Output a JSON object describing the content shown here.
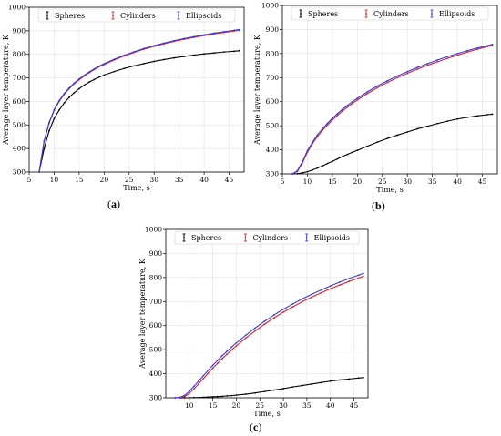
{
  "figure": {
    "panel_labels": [
      "a",
      "b",
      "c"
    ]
  },
  "chart_data": [
    {
      "id": "a",
      "type": "line",
      "xlabel": "Time, s",
      "ylabel": "Average layer temperature, K",
      "xlim": [
        5,
        48
      ],
      "ylim": [
        300,
        1000
      ],
      "xticks": [
        5,
        10,
        15,
        20,
        25,
        30,
        35,
        40,
        45
      ],
      "yticks": [
        300,
        400,
        500,
        600,
        700,
        800,
        900,
        1000
      ],
      "grid": true,
      "legend": "top",
      "x": [
        7.0,
        8.0,
        9.0,
        10.0,
        11.0,
        12.0,
        13.0,
        14.0,
        15.0,
        16.0,
        17.0,
        18.0,
        19.0,
        20.0,
        22.0,
        24.0,
        26.0,
        28.0,
        30.0,
        32.0,
        34.0,
        36.0,
        38.0,
        40.0,
        42.0,
        44.0,
        46.0,
        47.0
      ],
      "series": [
        {
          "name": "Spheres",
          "color": "#000000",
          "values": [
            300,
            400,
            475,
            527,
            563,
            593,
            617,
            637,
            654,
            669,
            682,
            693,
            703,
            712,
            727,
            740,
            751,
            761,
            770,
            778,
            785,
            791,
            797,
            802,
            806,
            810,
            813,
            815
          ]
        },
        {
          "name": "Cylinders",
          "color": "#d62728",
          "values": [
            300,
            430,
            508,
            562,
            600,
            630,
            654,
            675,
            692,
            708,
            722,
            735,
            747,
            757,
            776,
            793,
            808,
            822,
            834,
            845,
            855,
            864,
            872,
            880,
            887,
            893,
            899,
            902
          ]
        },
        {
          "name": "Ellipsoids",
          "color": "#3a3ad8",
          "values": [
            300,
            433,
            511,
            565,
            603,
            633,
            657,
            678,
            695,
            711,
            725,
            738,
            750,
            760,
            779,
            796,
            811,
            825,
            837,
            848,
            858,
            867,
            875,
            883,
            890,
            896,
            902,
            905
          ]
        }
      ]
    },
    {
      "id": "b",
      "type": "line",
      "xlabel": "Time, s",
      "ylabel": "Average layer temperature, K",
      "xlim": [
        5,
        48
      ],
      "ylim": [
        300,
        1000
      ],
      "xticks": [
        5,
        10,
        15,
        20,
        25,
        30,
        35,
        40,
        45
      ],
      "yticks": [
        300,
        400,
        500,
        600,
        700,
        800,
        900,
        1000
      ],
      "grid": true,
      "legend": "top",
      "x": [
        7.0,
        8.0,
        9.0,
        10.0,
        11.0,
        12.0,
        13.0,
        14.0,
        15.0,
        16.0,
        17.0,
        18.0,
        19.0,
        20.0,
        22.0,
        24.0,
        26.0,
        28.0,
        30.0,
        32.0,
        34.0,
        36.0,
        38.0,
        40.0,
        42.0,
        44.0,
        46.0,
        47.0
      ],
      "series": [
        {
          "name": "Spheres",
          "color": "#000000",
          "values": [
            300,
            301,
            304,
            309,
            316,
            324,
            333,
            343,
            352,
            362,
            372,
            381,
            390,
            398,
            415,
            432,
            447,
            461,
            474,
            487,
            498,
            509,
            519,
            528,
            535,
            541,
            546,
            548
          ]
        },
        {
          "name": "Cylinders",
          "color": "#d62728",
          "values": [
            300,
            310,
            345,
            390,
            425,
            455,
            480,
            503,
            524,
            543,
            561,
            577,
            593,
            607,
            634,
            658,
            680,
            700,
            718,
            735,
            751,
            766,
            780,
            793,
            806,
            818,
            829,
            834
          ]
        },
        {
          "name": "Ellipsoids",
          "color": "#3a3ad8",
          "values": [
            300,
            313,
            350,
            396,
            431,
            462,
            487,
            510,
            531,
            550,
            568,
            584,
            600,
            614,
            641,
            665,
            687,
            707,
            725,
            742,
            758,
            773,
            787,
            800,
            812,
            823,
            833,
            838
          ]
        }
      ]
    },
    {
      "id": "c",
      "type": "line",
      "xlabel": "Time, s",
      "ylabel": "Average layer temperature, K",
      "xlim": [
        5,
        48
      ],
      "ylim": [
        300,
        1000
      ],
      "xticks": [
        10,
        15,
        20,
        25,
        30,
        35,
        40,
        45
      ],
      "yticks": [
        300,
        400,
        500,
        600,
        700,
        800,
        900,
        1000
      ],
      "grid": true,
      "legend": "top",
      "x": [
        7.0,
        8.0,
        9.0,
        10.0,
        11.0,
        12.0,
        13.0,
        14.0,
        15.0,
        16.0,
        17.0,
        18.0,
        19.0,
        20.0,
        22.0,
        24.0,
        26.0,
        28.0,
        30.0,
        32.0,
        34.0,
        36.0,
        38.0,
        40.0,
        42.0,
        44.0,
        46.0,
        47.0
      ],
      "series": [
        {
          "name": "Spheres",
          "color": "#000000",
          "values": [
            300,
            300,
            300,
            300,
            301,
            301,
            302,
            303,
            304,
            305,
            306,
            308,
            309,
            311,
            315,
            320,
            326,
            332,
            338,
            345,
            351,
            357,
            363,
            369,
            374,
            378,
            382,
            384
          ]
        },
        {
          "name": "Cylinders",
          "color": "#d62728",
          "values": [
            300,
            301,
            305,
            318,
            337,
            358,
            380,
            402,
            423,
            443,
            463,
            481,
            499,
            516,
            548,
            578,
            606,
            632,
            656,
            678,
            699,
            718,
            736,
            753,
            769,
            784,
            798,
            805
          ]
        },
        {
          "name": "Ellipsoids",
          "color": "#3a3ad8",
          "values": [
            300,
            302,
            310,
            327,
            348,
            370,
            392,
            414,
            435,
            455,
            475,
            493,
            511,
            528,
            560,
            590,
            618,
            644,
            668,
            690,
            711,
            730,
            748,
            765,
            781,
            796,
            810,
            817
          ]
        }
      ]
    }
  ]
}
